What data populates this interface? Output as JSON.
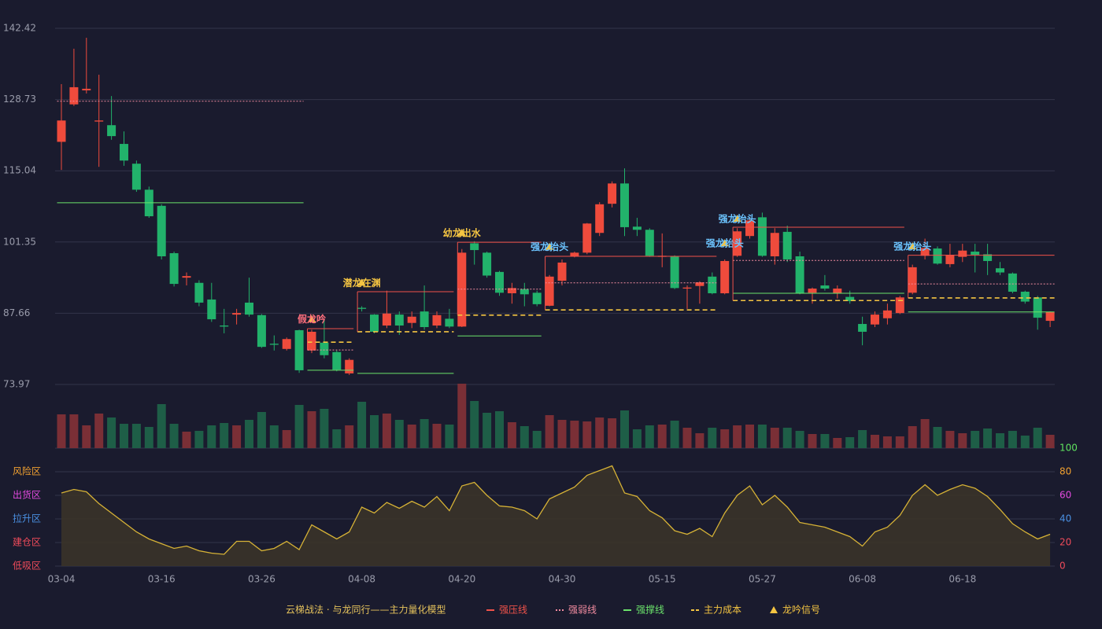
{
  "chart_data": {
    "type": "candlestick",
    "categories": [
      "03-04",
      null,
      null,
      null,
      null,
      null,
      null,
      null,
      "03-16",
      null,
      null,
      null,
      null,
      null,
      null,
      null,
      "03-26",
      null,
      null,
      null,
      null,
      null,
      null,
      null,
      "04-08",
      null,
      null,
      null,
      null,
      null,
      null,
      null,
      "04-20",
      null,
      null,
      null,
      null,
      null,
      null,
      null,
      "04-30",
      null,
      null,
      null,
      null,
      null,
      null,
      null,
      "05-15",
      null,
      null,
      null,
      null,
      null,
      null,
      null,
      "05-27",
      null,
      null,
      null,
      null,
      null,
      null,
      null,
      "06-08",
      null,
      null,
      null,
      null,
      null,
      null,
      null,
      "06-18",
      null,
      null,
      null,
      null,
      null,
      null,
      null
    ],
    "open": [
      120.6,
      127.8,
      130.5,
      124.5,
      123.8,
      120.2,
      116.4,
      111.4,
      108.3,
      99.2,
      94.5,
      93.5,
      90.3,
      85.3,
      87.4,
      89.7,
      87.3,
      81.8,
      80.8,
      84.4,
      80.5,
      82.0,
      80.2,
      76.1,
      88.7,
      87.4,
      85.3,
      87.4,
      85.8,
      88.0,
      85.3,
      86.6,
      85.1,
      101.1,
      99.3,
      95.6,
      91.5,
      92.3,
      91.6,
      89.1,
      93.9,
      98.6,
      99.3,
      103.1,
      108.7,
      112.6,
      104.3,
      103.7,
      98.5,
      98.6,
      92.4,
      92.9,
      94.7,
      91.5,
      98.7,
      102.5,
      106.1,
      98.6,
      103.3,
      98.6,
      91.6,
      93.0,
      91.5,
      90.8,
      85.6,
      85.5,
      86.7,
      87.7,
      91.6,
      98.7,
      100.1,
      97.1,
      98.5,
      99.5,
      99.0,
      96.3,
      95.3,
      91.8,
      90.7,
      86.2
    ],
    "high": [
      131.7,
      138.5,
      140.6,
      133.5,
      129.4,
      122.6,
      117.0,
      112.0,
      108.6,
      99.5,
      95.5,
      94.0,
      93.5,
      88.5,
      88.5,
      94.5,
      87.5,
      83.4,
      83.0,
      84.5,
      84.5,
      86.5,
      80.5,
      79.0,
      89.0,
      87.5,
      92.0,
      88.0,
      88.0,
      93.0,
      88.0,
      88.5,
      100.0,
      101.5,
      99.5,
      95.8,
      93.5,
      93.5,
      92.0,
      95.0,
      98.0,
      99.5,
      105.0,
      109.0,
      113.0,
      115.5,
      106.0,
      104.0,
      103.0,
      98.8,
      93.0,
      93.8,
      95.5,
      98.0,
      104.0,
      106.0,
      107.0,
      104.0,
      104.5,
      99.5,
      92.6,
      95.0,
      93.0,
      92.0,
      87.0,
      88.0,
      89.5,
      91.0,
      97.0,
      102.0,
      100.5,
      101.0,
      101.0,
      101.0,
      101.0,
      97.5,
      95.5,
      92.0,
      91.0,
      88.0
    ],
    "low": [
      115.2,
      127.5,
      129.9,
      115.8,
      121.0,
      116.0,
      111.0,
      106.0,
      98.0,
      92.8,
      93.0,
      89.0,
      86.0,
      83.8,
      85.5,
      87.0,
      81.0,
      80.5,
      80.5,
      76.2,
      80.0,
      79.0,
      76.5,
      75.8,
      88.0,
      83.8,
      84.8,
      83.5,
      84.8,
      84.5,
      84.8,
      84.8,
      85.0,
      97.0,
      94.5,
      91.0,
      89.5,
      89.0,
      89.0,
      89.0,
      93.0,
      98.4,
      99.0,
      102.5,
      108.0,
      102.5,
      102.5,
      98.5,
      96.5,
      92.3,
      88.5,
      89.5,
      91.3,
      91.3,
      98.5,
      102.0,
      98.5,
      97.0,
      97.5,
      91.3,
      89.5,
      92.0,
      90.5,
      89.5,
      81.5,
      85.0,
      85.5,
      87.5,
      91.3,
      98.0,
      97.0,
      96.5,
      97.5,
      95.5,
      95.0,
      95.0,
      91.5,
      89.5,
      84.5,
      85.0
    ],
    "close": [
      124.7,
      131.1,
      130.8,
      124.7,
      121.7,
      117.0,
      111.4,
      106.3,
      98.6,
      93.3,
      94.8,
      89.7,
      86.5,
      85.1,
      87.7,
      87.4,
      81.2,
      81.6,
      82.7,
      76.7,
      84.1,
      79.6,
      76.8,
      78.7,
      88.5,
      84.1,
      87.6,
      85.3,
      87.0,
      85.0,
      87.3,
      85.1,
      99.3,
      99.8,
      94.9,
      91.6,
      92.5,
      91.3,
      89.4,
      94.7,
      97.4,
      99.3,
      104.9,
      108.6,
      112.6,
      104.2,
      103.7,
      98.7,
      98.7,
      92.5,
      92.6,
      93.6,
      91.5,
      97.7,
      103.4,
      105.5,
      98.7,
      103.1,
      98.0,
      91.5,
      92.4,
      92.4,
      92.4,
      90.0,
      84.1,
      87.4,
      88.2,
      90.7,
      96.5,
      100.2,
      97.2,
      98.9,
      99.7,
      98.9,
      97.7,
      95.5,
      91.8,
      89.9,
      86.8,
      87.9
    ],
    "volume": [
      43,
      43,
      29,
      44,
      39,
      31,
      31,
      27,
      56,
      31,
      21,
      22,
      29,
      32,
      29,
      36,
      46,
      29,
      23,
      55,
      47,
      50,
      24,
      29,
      59,
      42,
      44,
      36,
      30,
      37,
      31,
      30,
      82,
      60,
      45,
      47,
      33,
      28,
      22,
      42,
      36,
      35,
      34,
      39,
      38,
      48,
      24,
      29,
      30,
      35,
      26,
      19,
      26,
      24,
      29,
      30,
      30,
      26,
      26,
      22,
      18,
      18,
      13,
      14,
      23,
      17,
      15,
      15,
      28,
      37,
      27,
      22,
      19,
      22,
      25,
      19,
      22,
      16,
      26,
      17
    ],
    "ylim": [
      73.97,
      142.42
    ],
    "yticks": [
      73.97,
      87.66,
      101.35,
      115.04,
      128.73,
      142.42
    ],
    "grid": true,
    "up_color": "#ef4b3c",
    "down_color": "#22b26b",
    "volume_up_color": "#7a2f36",
    "volume_down_color": "#1e5e47",
    "indicator": {
      "values": [
        62,
        65,
        63,
        53,
        45,
        37,
        29,
        23,
        19,
        15,
        17,
        13,
        11,
        10,
        21,
        21,
        13,
        15,
        21,
        14,
        35,
        29,
        23,
        29,
        50,
        45,
        54,
        49,
        55,
        50,
        59,
        47,
        68,
        71,
        60,
        51,
        50,
        47,
        40,
        57,
        62,
        67,
        77,
        81,
        85,
        62,
        59,
        47,
        41,
        30,
        27,
        32,
        25,
        45,
        60,
        68,
        52,
        60,
        50,
        37,
        35,
        33,
        29,
        25,
        17,
        29,
        33,
        43,
        60,
        69,
        60,
        65,
        69,
        66,
        59,
        48,
        36,
        29,
        23,
        27
      ],
      "color": "#d6b236",
      "ylim": [
        0,
        100
      ],
      "yticks": [
        0,
        20,
        40,
        60,
        80,
        100
      ],
      "ytick_colors": [
        "#ef4b5a",
        "#ef4b5a",
        "#4a90e2",
        "#e24adf",
        "#f0a030",
        "#5fe35f"
      ],
      "zones": [
        {
          "label": "风险区",
          "value": 80,
          "color": "#f0a030"
        },
        {
          "label": "出货区",
          "value": 60,
          "color": "#e24adf"
        },
        {
          "label": "拉升区",
          "value": 40,
          "color": "#4a90e2"
        },
        {
          "label": "建仓区",
          "value": 20,
          "color": "#ef4b5a"
        },
        {
          "label": "低吸区",
          "value": 0,
          "color": "#ef4b5a"
        }
      ]
    },
    "segments": [
      {
        "start": 0,
        "end": 19,
        "lines": {
          "weak": 128.4,
          "support": 108.9
        }
      },
      {
        "label": "假龙吟",
        "color": "#ff6f7d",
        "start": 20,
        "end": 23,
        "signal": 86.4,
        "lines": {
          "pressure": 84.7,
          "weak": 80.6,
          "cost": 82.1,
          "support": 76.7
        }
      },
      {
        "label": "潜龙在渊",
        "color": "#f5c542",
        "start": 24,
        "end": 31,
        "signal": 93.4,
        "lines": {
          "pressure": 91.8,
          "cost": 84.1,
          "support": 76.1
        }
      },
      {
        "label": "幼龙出水",
        "color": "#f5c542",
        "start": 32,
        "end": 38,
        "signal": 103.0,
        "lines": {
          "pressure": 101.3,
          "weak": 92.3,
          "cost": 87.3,
          "support": 83.3
        }
      },
      {
        "label": "强龙抬头",
        "color": "#6cc4ff",
        "start": 39,
        "end": 52,
        "signal": 100.3,
        "lines": {
          "pressure": 98.6,
          "weak": 93.5,
          "cost": 88.3
        }
      },
      {
        "label": "强龙抬头",
        "color": "#6cc4ff",
        "start": 53,
        "end": 53,
        "signal": 101.0,
        "lines": {}
      },
      {
        "label": "强龙抬头",
        "color": "#6cc4ff",
        "start": 54,
        "end": 67,
        "signal": 105.7,
        "lines": {
          "pressure": 104.2,
          "weak": 97.8,
          "cost": 90.1,
          "support": 91.5
        }
      },
      {
        "label": "强龙抬头",
        "color": "#6cc4ff",
        "start": 68,
        "end": 79,
        "signal": 100.4,
        "lines": {
          "pressure": 98.8,
          "weak": 93.3,
          "cost": 90.6,
          "support": 87.9
        }
      }
    ],
    "legend": {
      "title": "云梯战法 · 与龙同行——主力量化模型",
      "items": [
        {
          "name": "强压线",
          "key": "pressure",
          "color": "#f0524a",
          "style": "solid"
        },
        {
          "name": "强弱线",
          "key": "weak",
          "color": "#f28ca0",
          "style": "dotted"
        },
        {
          "name": "强撑线",
          "key": "support",
          "color": "#6be36b",
          "style": "solid"
        },
        {
          "name": "主力成本",
          "key": "cost",
          "color": "#f5c542",
          "style": "dashed"
        },
        {
          "name": "龙吟信号",
          "key": "signal",
          "color": "#f5c542",
          "style": "triangle"
        }
      ]
    }
  }
}
